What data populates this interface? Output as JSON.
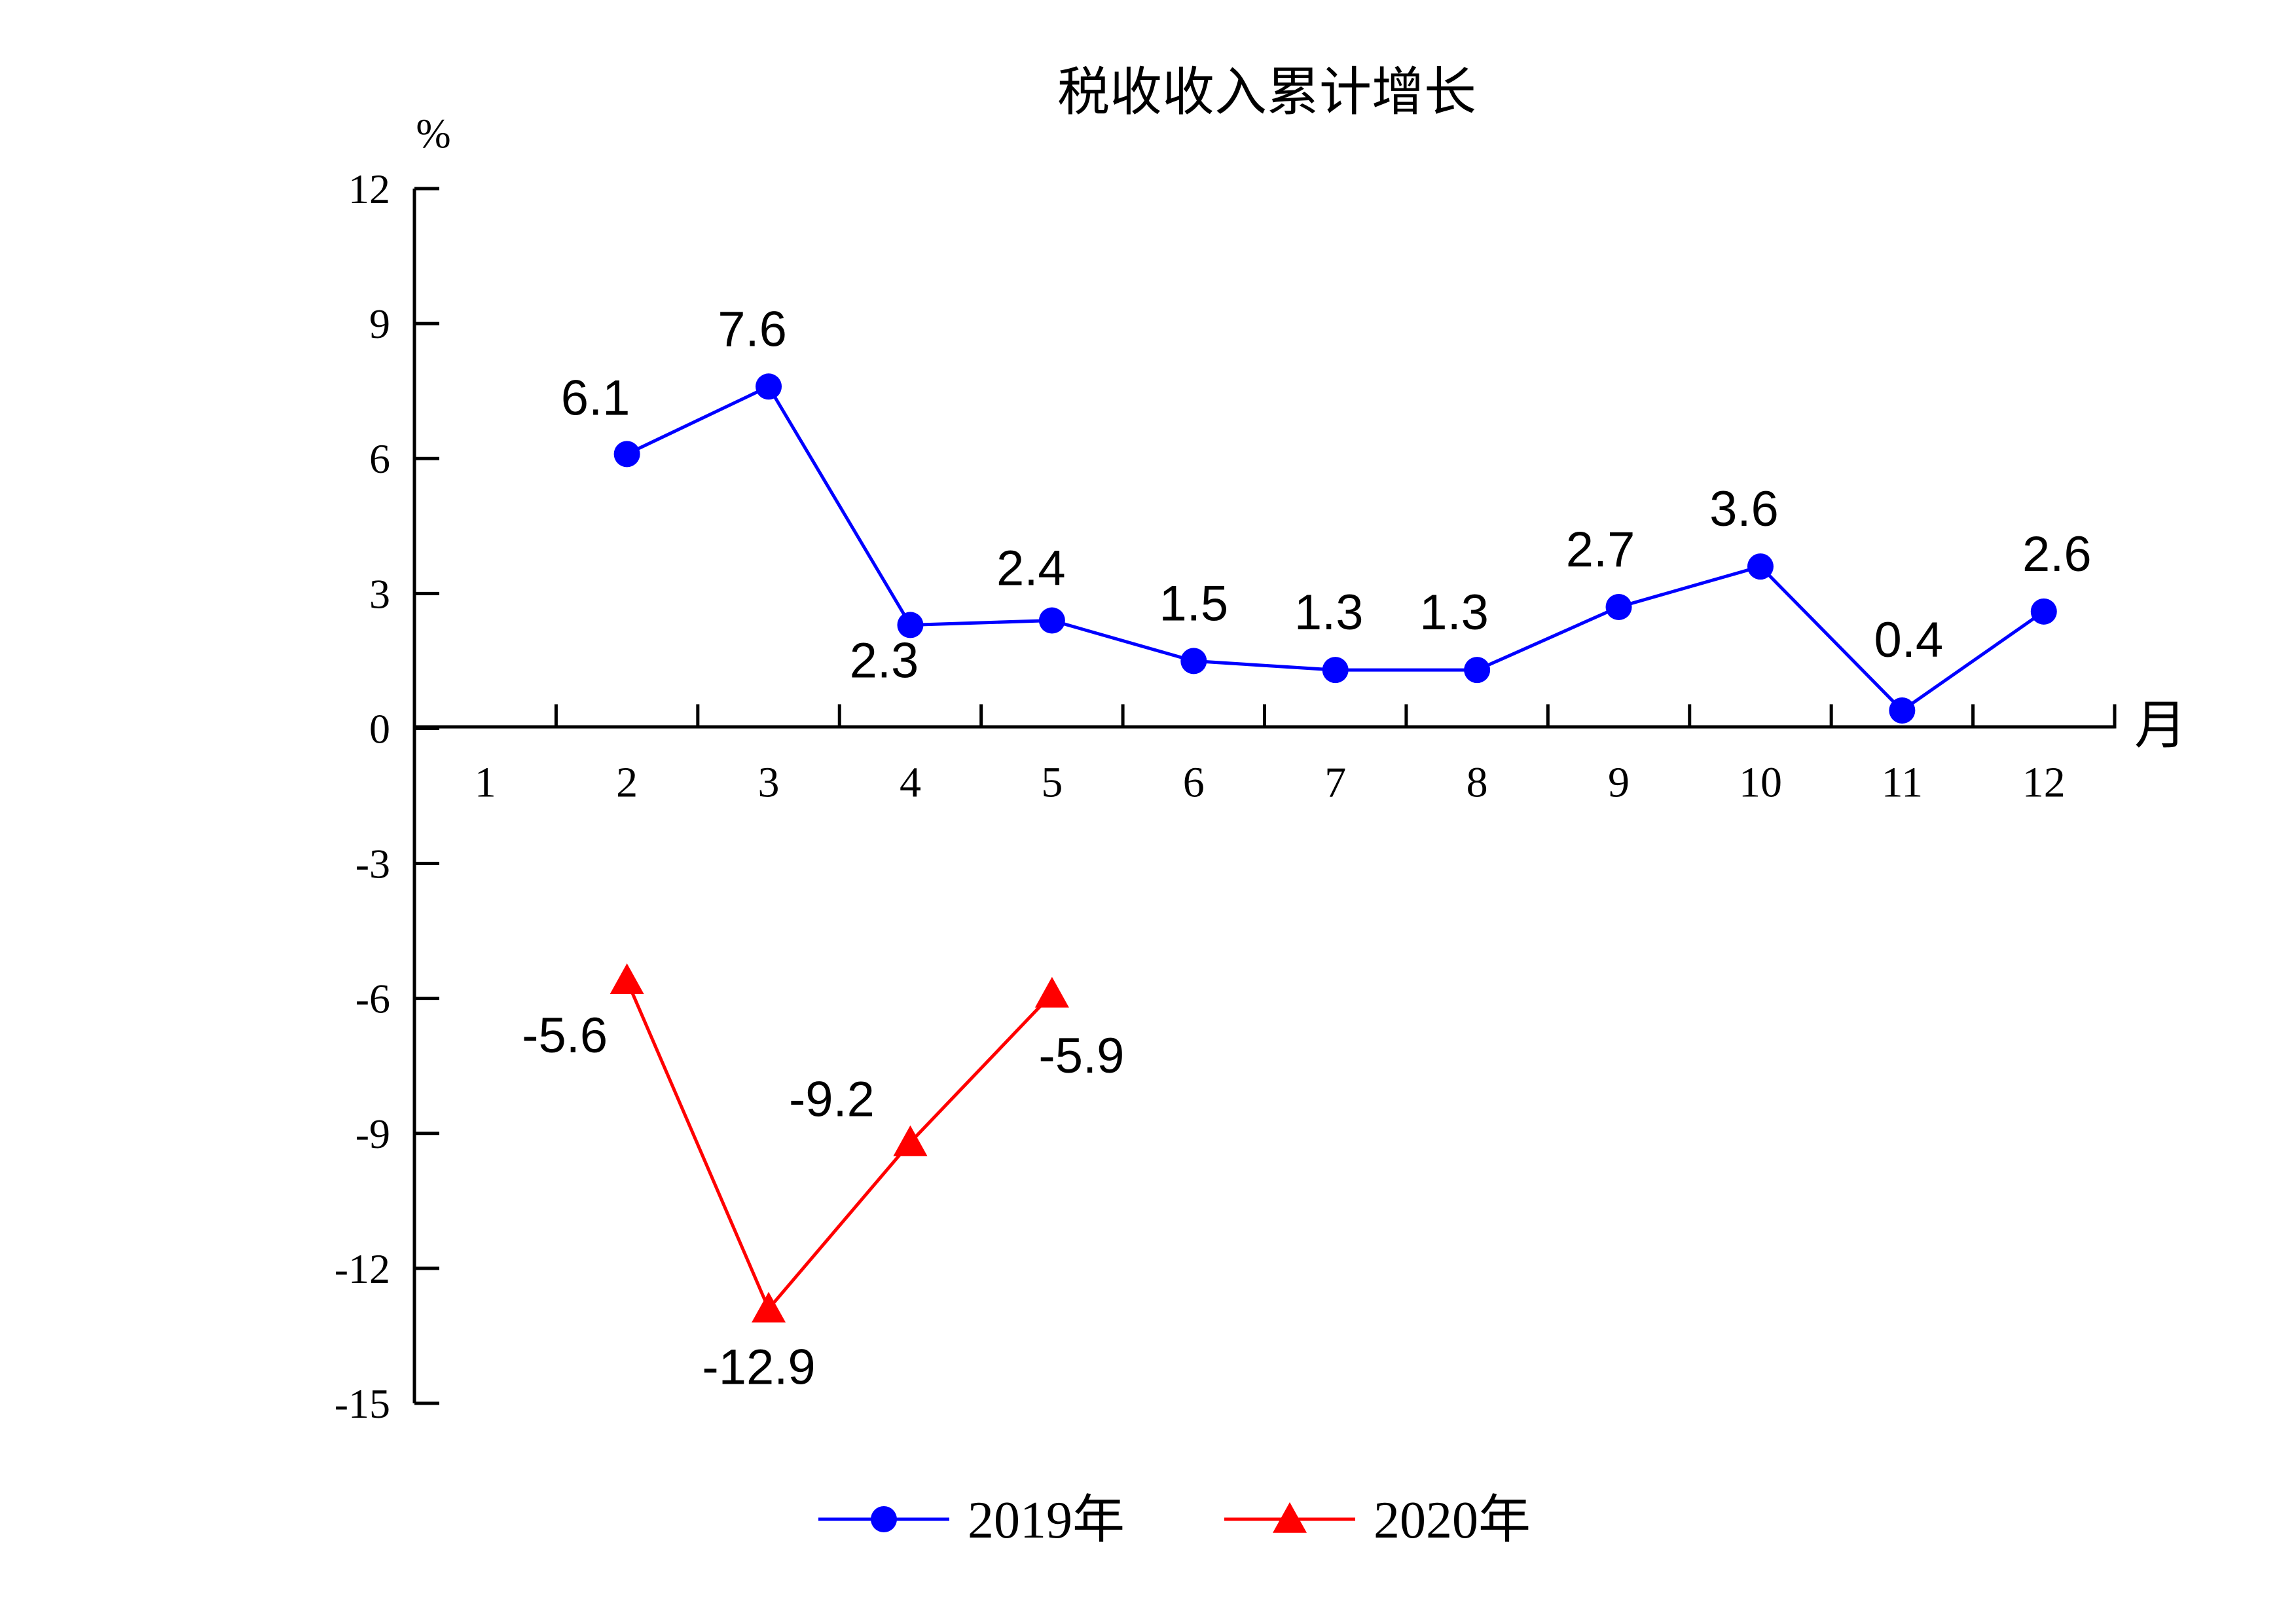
{
  "chart_data": {
    "type": "line",
    "title": "税收收入累计增长",
    "ylabel": "%",
    "xlabel": "月",
    "categories": [
      "1",
      "2",
      "3",
      "4",
      "5",
      "6",
      "7",
      "8",
      "9",
      "10",
      "11",
      "12"
    ],
    "ylim": [
      -15,
      12
    ],
    "yticks": [
      "12",
      "9",
      "6",
      "3",
      "0",
      "-3",
      "-6",
      "-9",
      "-12",
      "-15"
    ],
    "grid": false,
    "legend_position": "bottom-center",
    "series": [
      {
        "name": "2019年",
        "color": "#0000ff",
        "marker": "circle",
        "x": [
          "2",
          "3",
          "4",
          "5",
          "6",
          "7",
          "8",
          "9",
          "10",
          "11",
          "12"
        ],
        "values": [
          6.1,
          7.6,
          2.3,
          2.4,
          1.5,
          1.3,
          1.3,
          2.7,
          3.6,
          0.4,
          2.6
        ],
        "labels": [
          "6.1",
          "7.6",
          "2.3",
          "2.4",
          "1.5",
          "1.3",
          "1.3",
          "2.7",
          "3.6",
          "0.4",
          "2.6"
        ]
      },
      {
        "name": "2020年",
        "color": "#ff0000",
        "marker": "triangle",
        "x": [
          "2",
          "3",
          "4",
          "5"
        ],
        "values": [
          -5.6,
          -12.9,
          -9.2,
          -5.9
        ],
        "labels": [
          "-5.6",
          "-12.9",
          "-9.2",
          "-5.9"
        ]
      }
    ]
  }
}
